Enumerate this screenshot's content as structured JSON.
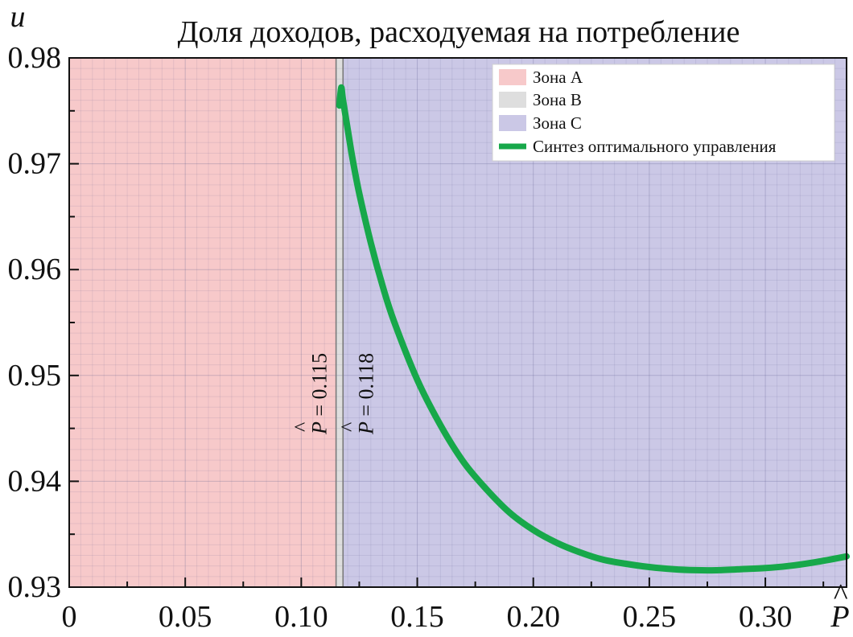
{
  "chart_data": {
    "type": "line",
    "title": "Доля доходов, расходуемая на потребление",
    "xlabel": "P̂",
    "ylabel": "u",
    "xlim": [
      0,
      0.335
    ],
    "ylim": [
      0.93,
      0.98
    ],
    "x_ticks": [
      0,
      0.05,
      0.1,
      0.15,
      0.2,
      0.25,
      0.3
    ],
    "x_tick_labels": [
      "0",
      "0.05",
      "0.10",
      "0.15",
      "0.20",
      "0.25",
      "0.30"
    ],
    "y_ticks": [
      0.93,
      0.94,
      0.95,
      0.96,
      0.97,
      0.98
    ],
    "y_tick_labels": [
      "0.93",
      "0.94",
      "0.95",
      "0.96",
      "0.97",
      "0.98"
    ],
    "grid": true,
    "zones": [
      {
        "name": "Зона A",
        "x_range": [
          0,
          0.115
        ],
        "color": "#f7c9ca"
      },
      {
        "name": "Зона B",
        "x_range": [
          0.115,
          0.118
        ],
        "color": "#dedede"
      },
      {
        "name": "Зона C",
        "x_range": [
          0.118,
          0.335
        ],
        "color": "#cbc8e6"
      }
    ],
    "boundaries": [
      {
        "x": 0.115,
        "label_hat": "P",
        "label_rest": " = 0.115"
      },
      {
        "x": 0.118,
        "label_hat": "P",
        "label_rest": " = 0.118"
      }
    ],
    "series": [
      {
        "name": "Синтез оптимального управления",
        "color": "#17a84a",
        "x": [
          0.1165,
          0.1172,
          0.118,
          0.12,
          0.122,
          0.125,
          0.13,
          0.135,
          0.14,
          0.15,
          0.16,
          0.17,
          0.18,
          0.19,
          0.2,
          0.21,
          0.22,
          0.23,
          0.24,
          0.25,
          0.26,
          0.27,
          0.28,
          0.29,
          0.3,
          0.31,
          0.32,
          0.335
        ],
        "y": [
          0.9755,
          0.9772,
          0.976,
          0.9733,
          0.9706,
          0.9672,
          0.9625,
          0.9585,
          0.9551,
          0.9496,
          0.9453,
          0.9418,
          0.9392,
          0.937,
          0.9354,
          0.9342,
          0.9333,
          0.9326,
          0.9322,
          0.9319,
          0.9317,
          0.9316,
          0.9316,
          0.9317,
          0.9318,
          0.932,
          0.9323,
          0.9329
        ]
      }
    ],
    "legend_position": "top-right"
  }
}
